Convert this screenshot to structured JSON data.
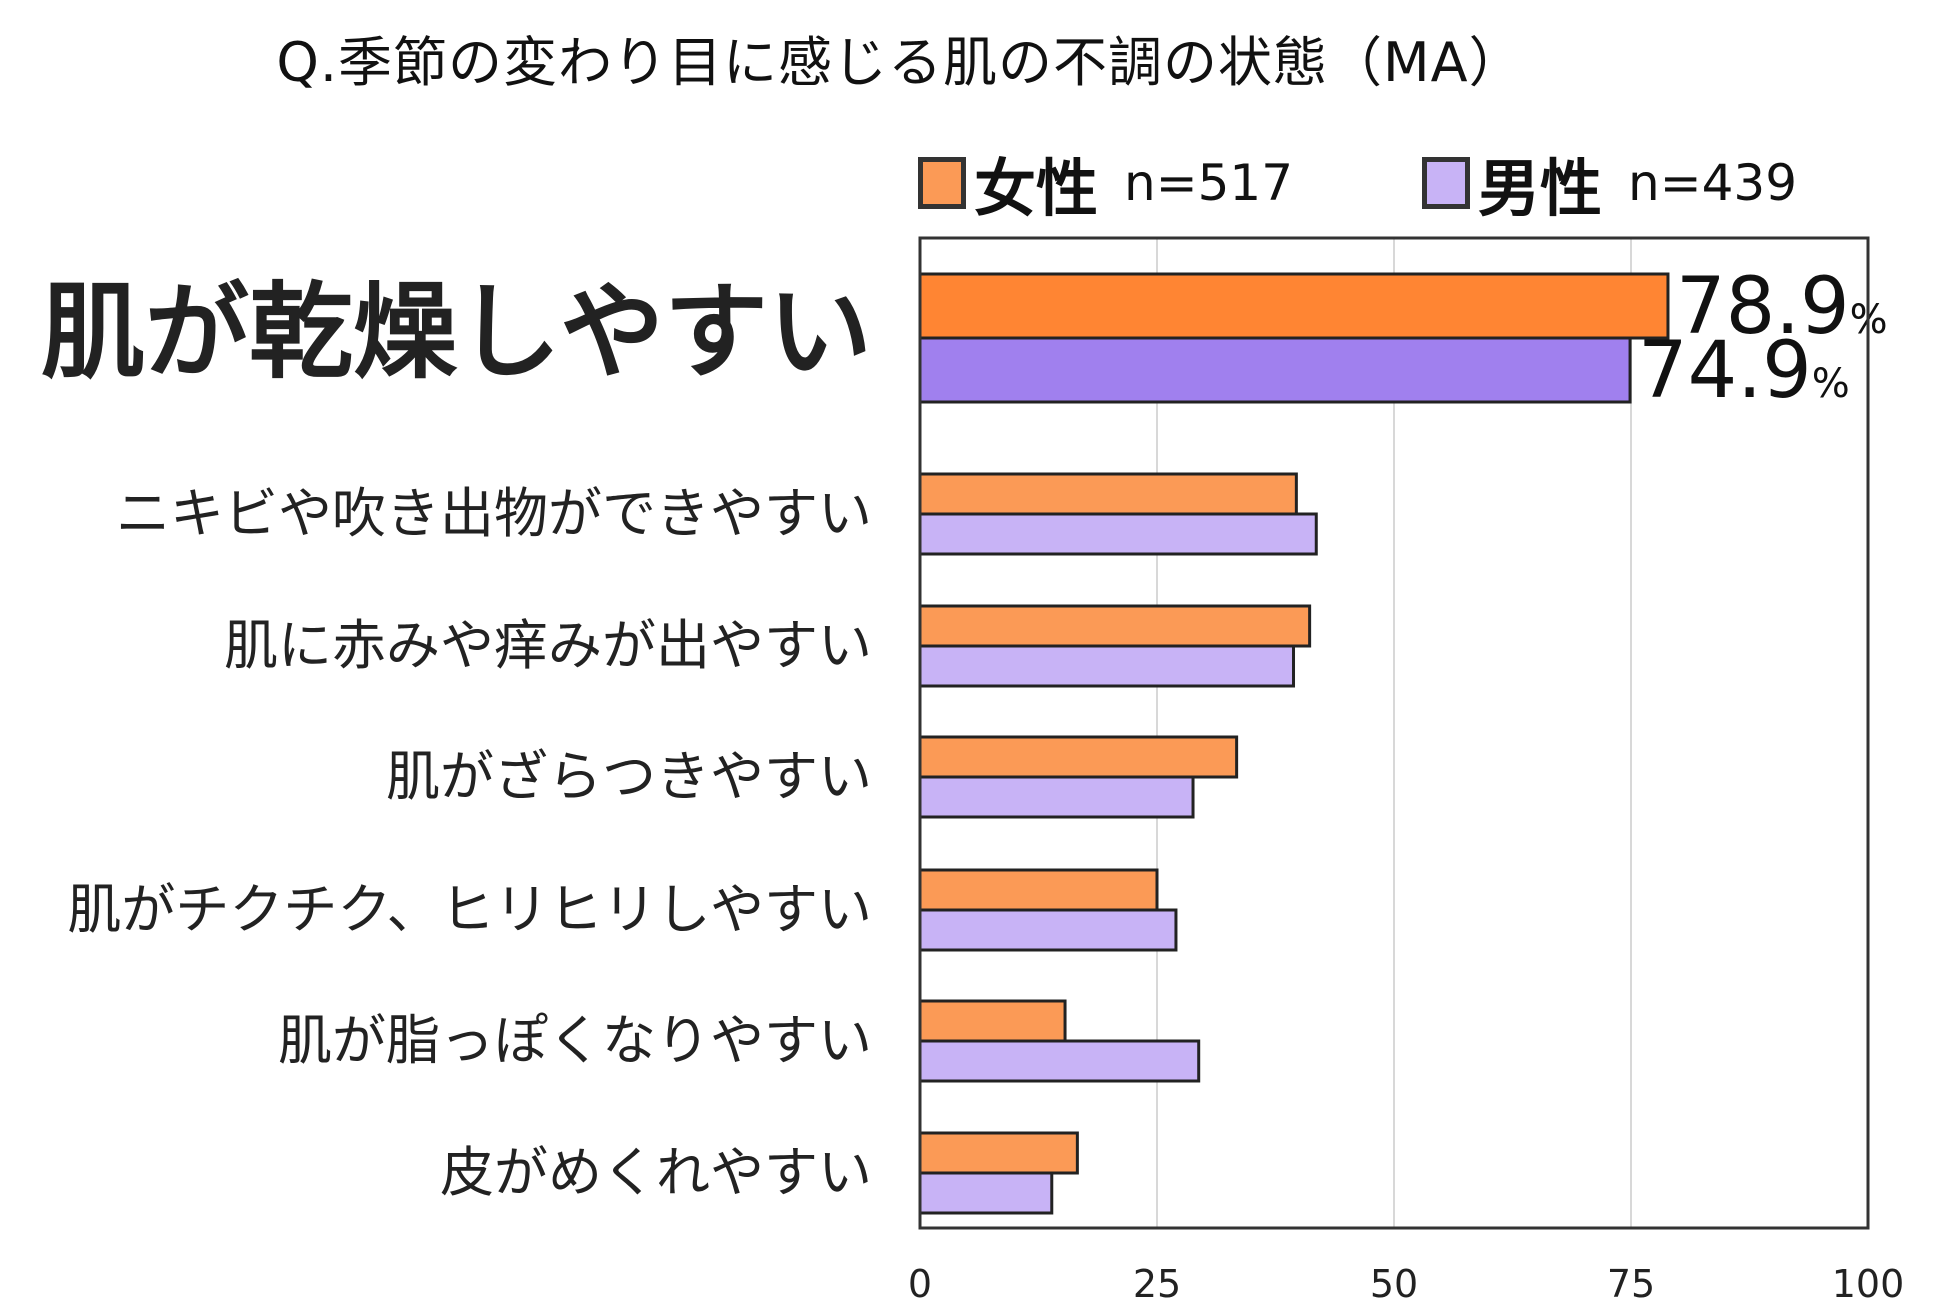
{
  "title": "Q.季節の変わり目に感じる肌の不調の状態（MA）",
  "legend": [
    {
      "label": "女性",
      "n": "n=517",
      "color": "#fb9a56"
    },
    {
      "label": "男性",
      "n": "n=439",
      "color": "#c8b3f6"
    }
  ],
  "chart_data": {
    "type": "bar",
    "orientation": "horizontal",
    "title": "Q.季節の変わり目に感じる肌の不調の状態（MA）",
    "categories": [
      "肌が乾燥しやすい",
      "ニキビや吹き出物ができやすい",
      "肌に赤みや痒みが出やすい",
      "肌がざらつきやすい",
      "肌がチクチク、ヒリヒリしやすい",
      "肌が脂っぽくなりやすい",
      "皮がめくれやすい"
    ],
    "series": [
      {
        "name": "女性",
        "n": "n=517",
        "values": [
          78.9,
          39.7,
          41.1,
          33.4,
          25.0,
          15.3,
          16.6
        ]
      },
      {
        "name": "男性",
        "n": "n=439",
        "values": [
          74.9,
          41.8,
          39.4,
          28.8,
          27.0,
          29.4,
          13.9
        ]
      }
    ],
    "data_labels": [
      {
        "category": "肌が乾燥しやすい",
        "series": "女性",
        "value": "78.9",
        "unit": "%"
      },
      {
        "category": "肌が乾燥しやすい",
        "series": "男性",
        "value": "74.9",
        "unit": "%"
      }
    ],
    "xlim": [
      0,
      100
    ],
    "xticks": [
      0,
      25,
      50,
      75,
      100
    ],
    "grid": "vertical",
    "legend_position": "top",
    "xlabel": "",
    "ylabel": ""
  },
  "colors": {
    "female_bar": "#fb9a56",
    "female_bar_highlight": "#ff8533",
    "male_bar": "#c8b3f6",
    "male_bar_highlight": "#a080ee",
    "grid": "#d8d8d8",
    "axis": "#333333"
  }
}
